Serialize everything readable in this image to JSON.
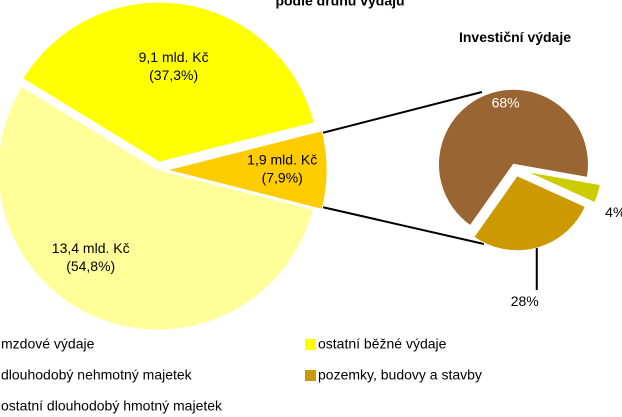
{
  "chart_data": [
    {
      "type": "pie",
      "title": "podle druhu výdajů",
      "categories": [
        "mzdové výdaje",
        "ostatní běžné výdaje",
        null
      ],
      "values": [
        54.8,
        37.3,
        7.9
      ],
      "value_labels": [
        "(54,8%)",
        "(37,3%)",
        "(7,9%)"
      ],
      "amount_labels": [
        "13,4 mld. Kč",
        "9,1 mld. Kč",
        "1,9 mld. Kč"
      ],
      "colors": [
        "#ffff99",
        "#ffff00",
        "#ffcc00"
      ]
    },
    {
      "type": "pie",
      "title": "Investiční výdaje",
      "categories": [
        "dlouhodobý nehmotný majetek",
        "pozemky, budovy a stavby",
        "ostatní dlouhodobý hmotný majetek"
      ],
      "values": [
        4,
        28,
        68
      ],
      "value_labels": [
        "4%",
        "28%",
        "68%"
      ],
      "colors": [
        "#cccc00",
        "#cc9900",
        "#996633"
      ]
    }
  ]
}
